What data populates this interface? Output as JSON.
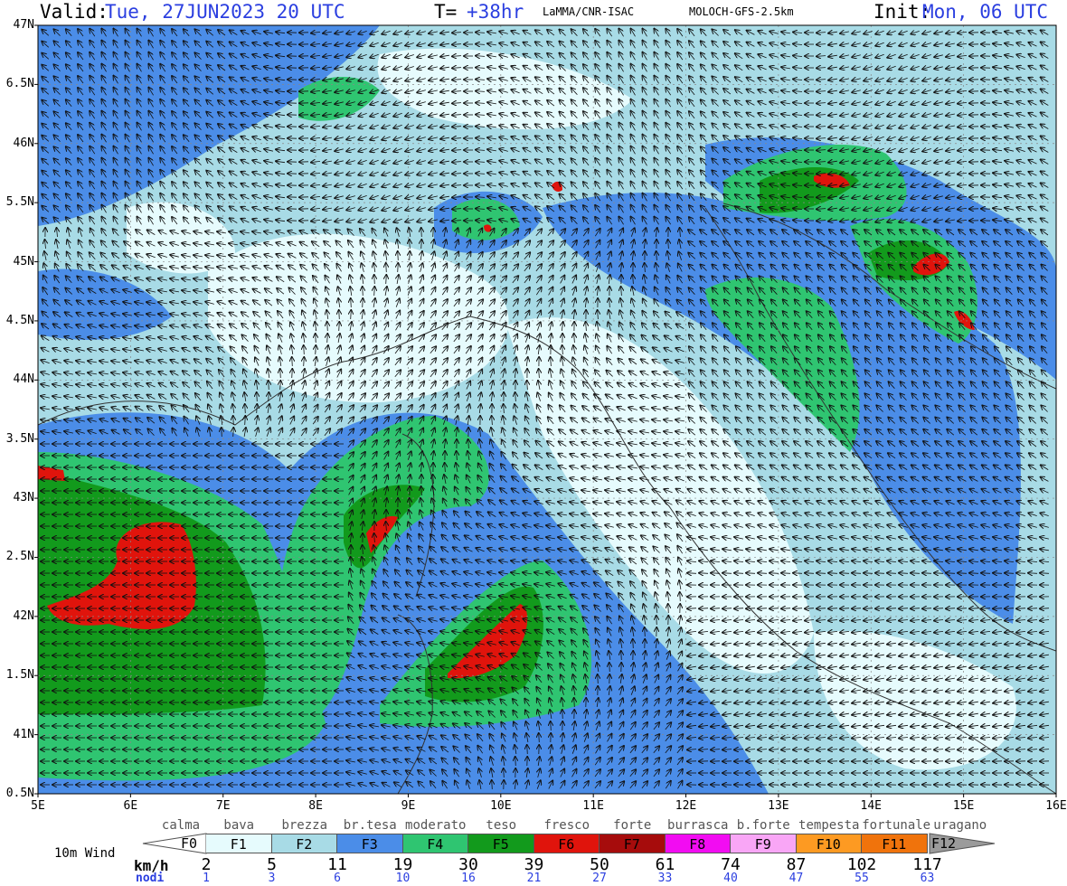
{
  "header": {
    "valid_label": "Valid:",
    "valid_value": "Tue, 27JUN2023  20 UTC",
    "t_label": "T=",
    "t_value": "+38hr",
    "institution": "LaMMA/CNR-ISAC",
    "model": "MOLOCH-GFS-2.5km",
    "init_label": "Init:",
    "init_value": "Mon, 06 UTC"
  },
  "axes": {
    "lat_labels": [
      "47N",
      "6.5N",
      "46N",
      "5.5N",
      "45N",
      "4.5N",
      "44N",
      "3.5N",
      "43N",
      "2.5N",
      "42N",
      "1.5N",
      "41N",
      "0.5N"
    ],
    "lon_labels": [
      "5E",
      "6E",
      "7E",
      "8E",
      "9E",
      "10E",
      "11E",
      "12E",
      "13E",
      "14E",
      "15E",
      "16E"
    ]
  },
  "legend": {
    "title": "10m Wind",
    "kmh_label": "km/h",
    "knots_label": "nodi",
    "beaufort": [
      {
        "name": "calma",
        "code": "F0",
        "color": "#ffffff"
      },
      {
        "name": "bava",
        "code": "F1",
        "color": "#e6fbfd"
      },
      {
        "name": "brezza",
        "code": "F2",
        "color": "#a8dbe6"
      },
      {
        "name": "br.tesa",
        "code": "F3",
        "color": "#4b8de8"
      },
      {
        "name": "moderato",
        "code": "F4",
        "color": "#2fc571"
      },
      {
        "name": "teso",
        "code": "F5",
        "color": "#129a1c"
      },
      {
        "name": "fresco",
        "code": "F6",
        "color": "#e0140c"
      },
      {
        "name": "forte",
        "code": "F7",
        "color": "#a60c0c"
      },
      {
        "name": "burrasca",
        "code": "F8",
        "color": "#f20cf2"
      },
      {
        "name": "b.forte",
        "code": "F9",
        "color": "#f9a6f6"
      },
      {
        "name": "tempesta",
        "code": "F10",
        "color": "#fd9a22"
      },
      {
        "name": "fortunale",
        "code": "F11",
        "color": "#f0730c"
      },
      {
        "name": "uragano",
        "code": "F12",
        "color": "#9b9b9b"
      }
    ],
    "kmh_values": [
      "2",
      "5",
      "11",
      "19",
      "30",
      "39",
      "50",
      "61",
      "74",
      "87",
      "102",
      "117"
    ],
    "knot_values": [
      "1",
      "3",
      "6",
      "10",
      "16",
      "21",
      "27",
      "33",
      "40",
      "47",
      "55",
      "63"
    ]
  }
}
